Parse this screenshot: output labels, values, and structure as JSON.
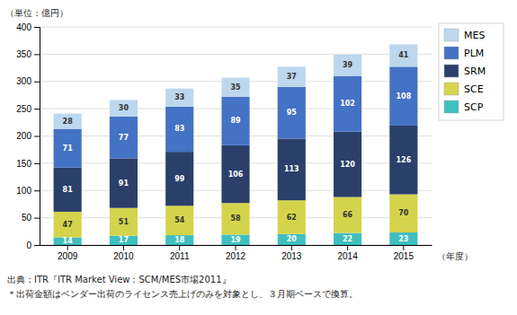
{
  "chart_data": {
    "type": "bar",
    "stacked": true,
    "categories": [
      "2009",
      "2010",
      "2011",
      "2012",
      "2013",
      "2014",
      "2015"
    ],
    "series": [
      {
        "name": "SCP",
        "color": "#40BFBF",
        "values": [
          14,
          17,
          18,
          19,
          20,
          22,
          23
        ]
      },
      {
        "name": "SCE",
        "color": "#D4D44C",
        "values": [
          47,
          51,
          54,
          58,
          62,
          66,
          70
        ]
      },
      {
        "name": "SRM",
        "color": "#2B3F6B",
        "values": [
          81,
          91,
          99,
          106,
          113,
          120,
          126
        ]
      },
      {
        "name": "PLM",
        "color": "#4472C4",
        "values": [
          71,
          77,
          83,
          89,
          95,
          102,
          108
        ]
      },
      {
        "name": "MES",
        "color": "#BDD7EE",
        "values": [
          28,
          30,
          33,
          35,
          37,
          39,
          41
        ]
      }
    ],
    "ylabel": "（単位：億円）",
    "xlabel": "（年度）",
    "ylim": [
      0,
      400
    ],
    "yticks": [
      0,
      50,
      100,
      150,
      200,
      250,
      300,
      350,
      400
    ],
    "grid": true,
    "data_labels": true,
    "legend": "right",
    "annotations": [
      "出典：ITR『ITR Market View：SCM/MES市場2011』",
      "＊出荷金額はベンダー出荷のライセンス売上げのみを対象とし、３月期ベースで換算。"
    ]
  }
}
